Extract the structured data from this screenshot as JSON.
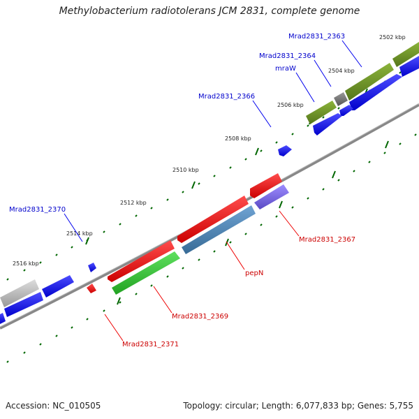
{
  "title": "Methylobacterium radiotolerans JCM 2831, complete genome",
  "footer": {
    "accession": "Accession: NC_010505",
    "topology": "Topology: circular; Length: 6,077,833 bp; Genes: 5,755"
  },
  "colors": {
    "backbone": "#888888",
    "forward_gene": "#0000ee",
    "reverse_gene": "#ee0000",
    "tick": "#006600",
    "olive": "#6b8e23",
    "steel": "#4682b4",
    "slate": "#7b68ee",
    "green": "#33cc33",
    "grey": "#bbbbbb",
    "dark_grey": "#777777"
  },
  "tick_labels": [
    "2502 kbp",
    "2504 kbp",
    "2506 kbp",
    "2508 kbp",
    "2510 kbp",
    "2512 kbp",
    "2514 kbp",
    "2516 kbp"
  ],
  "gene_labels": [
    {
      "id": "mrad2831-2363",
      "text": "Mrad2831_2363",
      "strand": "forward"
    },
    {
      "id": "mrad2831-2364",
      "text": "Mrad2831_2364",
      "strand": "forward"
    },
    {
      "id": "mraw",
      "text": "mraW",
      "strand": "forward"
    },
    {
      "id": "mrad2831-2366",
      "text": "Mrad2831_2366",
      "strand": "forward"
    },
    {
      "id": "mrad2831-2370",
      "text": "Mrad2831_2370",
      "strand": "forward"
    },
    {
      "id": "mrad2831-2367",
      "text": "Mrad2831_2367",
      "strand": "reverse"
    },
    {
      "id": "pepn",
      "text": "pepN",
      "strand": "reverse"
    },
    {
      "id": "mrad2831-2369",
      "text": "Mrad2831_2369",
      "strand": "reverse"
    },
    {
      "id": "mrad2831-2371",
      "text": "Mrad2831_2371",
      "strand": "reverse"
    }
  ]
}
